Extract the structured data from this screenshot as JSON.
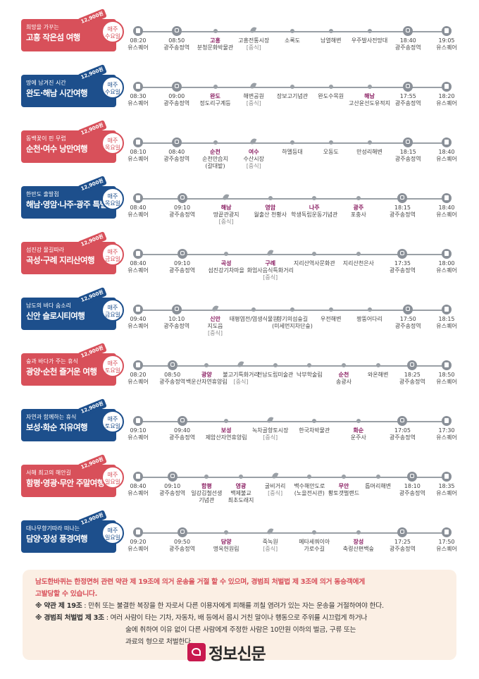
{
  "accents": {
    "red": "#d8505a",
    "navy": "#1d4f8c",
    "highlight": "#8a1e62",
    "notice_bg": "#fbefe4"
  },
  "tours": [
    {
      "subtitle": "희망을 가꾸는",
      "title": "고흥 작은섬 여행",
      "price": "12,900원",
      "day": "매주\n수요일",
      "color": "red",
      "stops": [
        {
          "lines": [
            "08:20",
            "유스퀘어"
          ],
          "icon": "bus-icon"
        },
        {
          "lines": [
            "08:50",
            "광주송정역"
          ],
          "icon": "train-icon"
        },
        {
          "lines": [
            "고흥",
            "분청문화박물관"
          ],
          "icon": "dot",
          "hl": 0
        },
        {
          "lines": [
            "고흥전통시장",
            "[중식]"
          ],
          "icon": "leaf-icon"
        },
        {
          "lines": [
            "소록도"
          ],
          "icon": "dot"
        },
        {
          "lines": [
            "남열해변"
          ],
          "icon": "dot"
        },
        {
          "lines": [
            "우주발사전망대"
          ],
          "icon": "dot"
        },
        {
          "lines": [
            "18:40",
            "광주송정역"
          ],
          "icon": "train-icon"
        },
        {
          "lines": [
            "19:05",
            "유스퀘어"
          ],
          "icon": "bus-icon"
        }
      ]
    },
    {
      "subtitle": "땅에 남겨진 시간",
      "title": "완도·해남 시간여행",
      "price": "12,900원",
      "day": "매주\n수요일",
      "color": "blue",
      "stops": [
        {
          "lines": [
            "08:30",
            "유스퀘어"
          ],
          "icon": "bus-icon"
        },
        {
          "lines": [
            "09:00",
            "광주송정역"
          ],
          "icon": "train-icon"
        },
        {
          "lines": [
            "완도",
            "정도리구계등"
          ],
          "icon": "dot",
          "hl": 0
        },
        {
          "lines": [
            "해변공원",
            "[중식]"
          ],
          "icon": "leaf-icon"
        },
        {
          "lines": [
            "장보고기념관"
          ],
          "icon": "dot"
        },
        {
          "lines": [
            "완도수목원"
          ],
          "icon": "dot"
        },
        {
          "lines": [
            "해남",
            "고산윤선도유적지"
          ],
          "icon": "dot",
          "hl": 0
        },
        {
          "lines": [
            "17:55",
            "광주송정역"
          ],
          "icon": "train-icon"
        },
        {
          "lines": [
            "18:20",
            "유스퀘어"
          ],
          "icon": "bus-icon"
        }
      ]
    },
    {
      "subtitle": "동백꽃이 핀 무렵",
      "title": "순천·여수 낭만여행",
      "price": "12,900원",
      "day": "매주\n목요일",
      "color": "red",
      "stops": [
        {
          "lines": [
            "08:10",
            "유스퀘어"
          ],
          "icon": "bus-icon"
        },
        {
          "lines": [
            "08:40",
            "광주송정역"
          ],
          "icon": "train-icon"
        },
        {
          "lines": [
            "순천",
            "순천만습지",
            "(갈대밭)"
          ],
          "icon": "dot",
          "hl": 0
        },
        {
          "lines": [
            "여수",
            "수산시장",
            "[중식]"
          ],
          "icon": "leaf-icon",
          "hl": 0
        },
        {
          "lines": [
            "하멜등대"
          ],
          "icon": "dot"
        },
        {
          "lines": [
            "오동도"
          ],
          "icon": "dot"
        },
        {
          "lines": [
            "만성리해변"
          ],
          "icon": "dot"
        },
        {
          "lines": [
            "18:15",
            "광주송정역"
          ],
          "icon": "train-icon"
        },
        {
          "lines": [
            "18:40",
            "유스퀘어"
          ],
          "icon": "bus-icon"
        }
      ]
    },
    {
      "subtitle": "한반도 출발점",
      "title": "해남·영암·나주·광주 특별한여행",
      "price": "12,900원",
      "day": "매주\n목요일",
      "color": "blue",
      "stops": [
        {
          "lines": [
            "08:40",
            "유스퀘어"
          ],
          "icon": "bus-icon"
        },
        {
          "lines": [
            "09:10",
            "광주송정역"
          ],
          "icon": "train-icon"
        },
        {
          "lines": [
            "해남",
            "땅끝관광지",
            "[중식]"
          ],
          "icon": "leaf-icon",
          "hl": 0
        },
        {
          "lines": [
            "영암",
            "월출산 천황사"
          ],
          "icon": "dot",
          "hl": 0
        },
        {
          "lines": [
            "나주",
            "학생독립운동기념관"
          ],
          "icon": "dot",
          "hl": 0
        },
        {
          "lines": [
            "광주",
            "포충사"
          ],
          "icon": "dot",
          "hl": 0
        },
        {
          "lines": [
            "18:15",
            "광주송정역"
          ],
          "icon": "train-icon"
        },
        {
          "lines": [
            "18:40",
            "유스퀘어"
          ],
          "icon": "bus-icon"
        }
      ]
    },
    {
      "subtitle": "섬진강 물길따라",
      "title": "곡성·구례 지리산여행",
      "price": "12,900원",
      "day": "매주\n금요일",
      "color": "red",
      "stops": [
        {
          "lines": [
            "08:40",
            "유스퀘어"
          ],
          "icon": "bus-icon"
        },
        {
          "lines": [
            "09:10",
            "광주송정역"
          ],
          "icon": "train-icon"
        },
        {
          "lines": [
            "곡성",
            "섬진강기차마을"
          ],
          "icon": "dot",
          "hl": 0
        },
        {
          "lines": [
            "구례",
            "화엄사음식특화거리",
            "[중식]"
          ],
          "icon": "leaf-icon",
          "hl": 0
        },
        {
          "lines": [
            "지리산역사문화관"
          ],
          "icon": "dot"
        },
        {
          "lines": [
            "지리산천은사"
          ],
          "icon": "dot"
        },
        {
          "lines": [
            "17:35",
            "광주송정역"
          ],
          "icon": "train-icon"
        },
        {
          "lines": [
            "18:00",
            "유스퀘어"
          ],
          "icon": "bus-icon"
        }
      ]
    },
    {
      "subtitle": "남도의 바다 숨소리",
      "title": "신안 슬로시티여행",
      "price": "12,900원",
      "day": "매주\n금요일",
      "color": "blue",
      "stops": [
        {
          "lines": [
            "09:40",
            "유스퀘어"
          ],
          "icon": "bus-icon"
        },
        {
          "lines": [
            "10:10",
            "광주송정역"
          ],
          "icon": "train-icon"
        },
        {
          "lines": [
            "신안",
            "지도읍",
            "[중식]"
          ],
          "icon": "leaf-icon",
          "hl": 0
        },
        {
          "lines": [
            "태평염전/염생식물원"
          ],
          "icon": "dot"
        },
        {
          "lines": [
            "향기의섬숲길",
            "(미세먼지차단숲)"
          ],
          "icon": "dot"
        },
        {
          "lines": [
            "우전해변"
          ],
          "icon": "dot"
        },
        {
          "lines": [
            "짱뚱어다리"
          ],
          "icon": "dot"
        },
        {
          "lines": [
            "17:50",
            "광주송정역"
          ],
          "icon": "train-icon"
        },
        {
          "lines": [
            "18:15",
            "유스퀘어"
          ],
          "icon": "bus-icon"
        }
      ]
    },
    {
      "subtitle": "숲과 바다가 주는 휴식",
      "title": "광양·순천 즐거운 여행",
      "price": "12,900원",
      "day": "매주\n토요일",
      "color": "red",
      "stops": [
        {
          "lines": [
            "08:20",
            "유스퀘어"
          ],
          "icon": "bus-icon"
        },
        {
          "lines": [
            "08:50",
            "광주송정역"
          ],
          "icon": "train-icon"
        },
        {
          "lines": [
            "광양",
            "백운산자연휴양림"
          ],
          "icon": "dot",
          "hl": 0
        },
        {
          "lines": [
            "불고기특화거리",
            "[중식]"
          ],
          "icon": "leaf-icon"
        },
        {
          "lines": [
            "전남도립미술관"
          ],
          "icon": "dot"
        },
        {
          "lines": [
            "낙부학술림"
          ],
          "icon": "dot"
        },
        {
          "lines": [
            "순천",
            "송광사"
          ],
          "icon": "dot",
          "hl": 0
        },
        {
          "lines": [
            "와온해변"
          ],
          "icon": "dot"
        },
        {
          "lines": [
            "18:25",
            "광주송정역"
          ],
          "icon": "train-icon"
        },
        {
          "lines": [
            "18:50",
            "유스퀘어"
          ],
          "icon": "bus-icon"
        }
      ]
    },
    {
      "subtitle": "자연과 함께하는 휴식",
      "title": "보성·화순 치유여행",
      "price": "12,900원",
      "day": "매주\n토요일",
      "color": "blue",
      "stops": [
        {
          "lines": [
            "09:10",
            "유스퀘어"
          ],
          "icon": "bus-icon"
        },
        {
          "lines": [
            "09:40",
            "광주송정역"
          ],
          "icon": "train-icon"
        },
        {
          "lines": [
            "보성",
            "제암산자연휴양림"
          ],
          "icon": "dot",
          "hl": 0
        },
        {
          "lines": [
            "녹차골향토시장",
            "[중식]"
          ],
          "icon": "leaf-icon"
        },
        {
          "lines": [
            "한국차박물관"
          ],
          "icon": "dot"
        },
        {
          "lines": [
            "화순",
            "운주사"
          ],
          "icon": "dot",
          "hl": 0
        },
        {
          "lines": [
            "17:05",
            "광주송정역"
          ],
          "icon": "train-icon"
        },
        {
          "lines": [
            "17:30",
            "유스퀘어"
          ],
          "icon": "bus-icon"
        }
      ]
    },
    {
      "subtitle": "서해 최고의 해안길",
      "title": "함평·영광·무안 주말여행",
      "price": "12,900원",
      "day": "매주\n일요일",
      "color": "red",
      "stops": [
        {
          "lines": [
            "08:40",
            "유스퀘어"
          ],
          "icon": "bus-icon"
        },
        {
          "lines": [
            "09:10",
            "광주송정역"
          ],
          "icon": "train-icon"
        },
        {
          "lines": [
            "함평",
            "일강김철선생",
            "기념관"
          ],
          "icon": "dot",
          "hl": 0
        },
        {
          "lines": [
            "영광",
            "백제불교",
            "최초도래지"
          ],
          "icon": "dot",
          "hl": 0
        },
        {
          "lines": [
            "굴비거리",
            "[중식]"
          ],
          "icon": "leaf-icon"
        },
        {
          "lines": [
            "백수해안도로",
            "(노을전시관)"
          ],
          "icon": "dot"
        },
        {
          "lines": [
            "무안",
            "황토갯벌랜드"
          ],
          "icon": "dot",
          "hl": 0
        },
        {
          "lines": [
            "톱머리해변"
          ],
          "icon": "dot"
        },
        {
          "lines": [
            "18:10",
            "광주송정역"
          ],
          "icon": "train-icon"
        },
        {
          "lines": [
            "18:35",
            "유스퀘어"
          ],
          "icon": "bus-icon"
        }
      ]
    },
    {
      "subtitle": "대나무향기따라 떠나는",
      "title": "담양·장성 풍경여행",
      "price": "12,900원",
      "day": "매주\n일요일",
      "color": "blue",
      "stops": [
        {
          "lines": [
            "09:20",
            "유스퀘어"
          ],
          "icon": "bus-icon"
        },
        {
          "lines": [
            "09:50",
            "광주송정역"
          ],
          "icon": "train-icon"
        },
        {
          "lines": [
            "담양",
            "명옥헌원림"
          ],
          "icon": "dot",
          "hl": 0
        },
        {
          "lines": [
            "죽녹원",
            "[중식]"
          ],
          "icon": "leaf-icon"
        },
        {
          "lines": [
            "메타세쿼이아",
            "가로수길"
          ],
          "icon": "dot"
        },
        {
          "lines": [
            "장성",
            "축령산편백숲"
          ],
          "icon": "dot",
          "hl": 0
        },
        {
          "lines": [
            "17:25",
            "광주송정역"
          ],
          "icon": "train-icon"
        },
        {
          "lines": [
            "17:50",
            "유스퀘어"
          ],
          "icon": "bus-icon"
        }
      ]
    }
  ],
  "notice": {
    "head_1": "남도한바퀴는 한정면허 관련 약관 제 19조에 의거 운송을 거절 할 수 있으며, 경범죄 처벌법 제 3조에 의거 동승객에게",
    "head_2": "고발당할 수 있습니다.",
    "clause_1_label": "※ 약관 제 19조",
    "clause_1_text": " : 만취 또는 불결한 복장을 한 자로서 다른 이용자에게 피해를 끼칠 염려가 있는 자는 운송을 거절하여야 한다.",
    "clause_2_label": "※ 경범죄 처벌법 제 3조",
    "clause_2_text": " : 여러 사람이 타는 기차, 자동차, 배 등에서 몹시 거친 말이나 행동으로 주위를 시끄럽게 하거나",
    "clause_2_cont_1": "술에 취하여 이유 없이 다른 사람에게 주정한 사람은 10만원 이하의 벌금, 구류 또는",
    "clause_2_cont_2": "과료의 형으로 처벌한다."
  },
  "watermark": {
    "text": "정보신문"
  }
}
